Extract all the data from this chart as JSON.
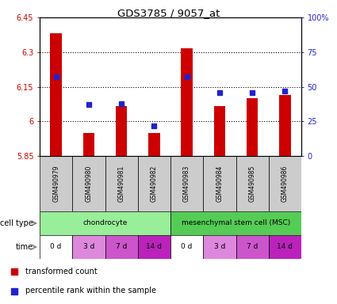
{
  "title": "GDS3785 / 9057_at",
  "samples": [
    "GSM490979",
    "GSM490980",
    "GSM490981",
    "GSM490982",
    "GSM490983",
    "GSM490984",
    "GSM490985",
    "GSM490986"
  ],
  "transformed_count": [
    6.38,
    5.95,
    6.065,
    5.95,
    6.315,
    6.065,
    6.1,
    6.115
  ],
  "percentile_rank": [
    57,
    37,
    38,
    22,
    57,
    46,
    46,
    47
  ],
  "ylim_left": [
    5.85,
    6.45
  ],
  "ylim_right": [
    0,
    100
  ],
  "yticks_left": [
    5.85,
    6.0,
    6.15,
    6.3,
    6.45
  ],
  "ytick_labels_left": [
    "5.85",
    "6",
    "6.15",
    "6.3",
    "6.45"
  ],
  "yticks_right": [
    0,
    25,
    50,
    75,
    100
  ],
  "ytick_labels_right": [
    "0",
    "25",
    "50",
    "75",
    "100%"
  ],
  "bar_color": "#cc0000",
  "dot_color": "#2222cc",
  "cell_types": [
    {
      "label": "chondrocyte",
      "start": 0,
      "end": 4,
      "color": "#99ee99"
    },
    {
      "label": "mesenchymal stem cell (MSC)",
      "start": 4,
      "end": 8,
      "color": "#55cc55"
    }
  ],
  "time_labels": [
    "0 d",
    "3 d",
    "7 d",
    "14 d",
    "0 d",
    "3 d",
    "7 d",
    "14 d"
  ],
  "time_colors": [
    "#ffffff",
    "#dd88dd",
    "#cc55cc",
    "#bb22bb",
    "#ffffff",
    "#dd88dd",
    "#cc55cc",
    "#bb22bb"
  ],
  "legend_bar_label": "transformed count",
  "legend_dot_label": "percentile rank within the sample",
  "left_color": "#cc0000",
  "right_color": "#2222cc",
  "sample_label_bg": "#cccccc",
  "cell_type_label": "cell type",
  "time_row_label": "time",
  "grid_yticks": [
    6.0,
    6.15,
    6.3
  ]
}
